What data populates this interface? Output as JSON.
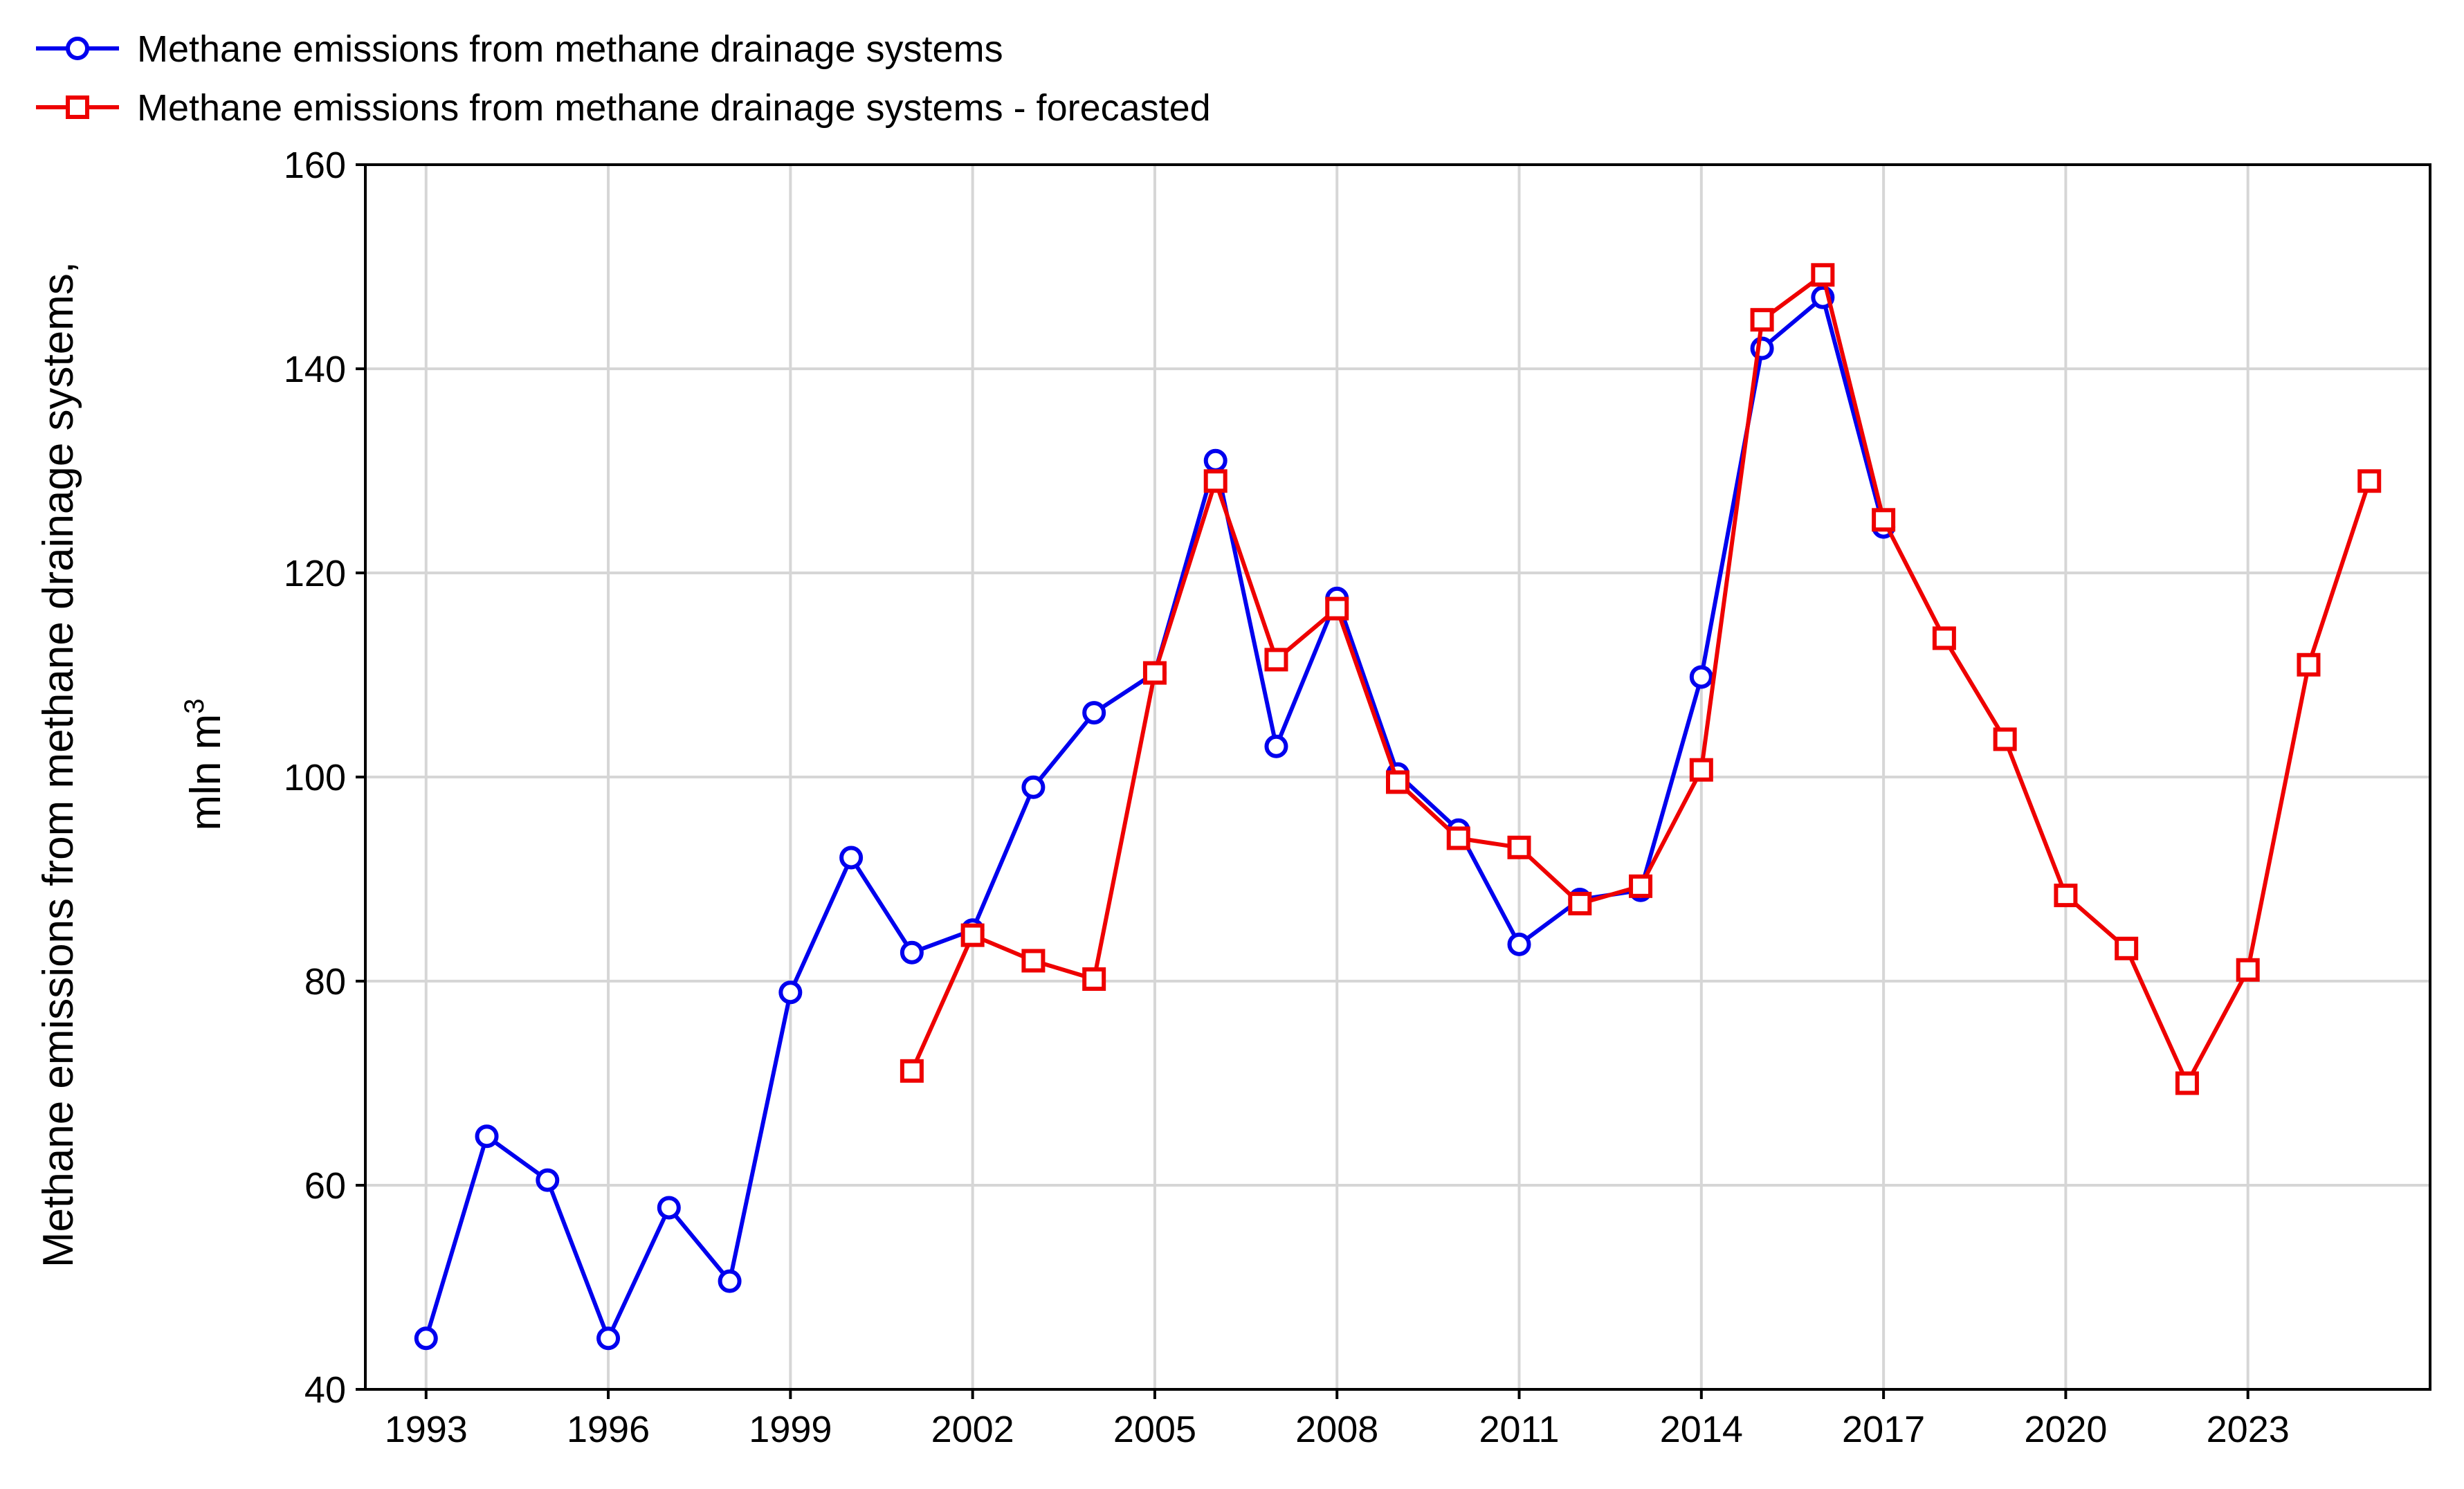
{
  "chart_data": {
    "type": "line",
    "title": "",
    "xlabel": "",
    "ylabel": "Methane emissions from methane drainage systems,",
    "ylabel_line3": "mln m",
    "ylabel_superscript": "3",
    "xlim": [
      1992,
      2026
    ],
    "ylim": [
      40,
      160
    ],
    "x_ticks": [
      1993,
      1996,
      1999,
      2002,
      2005,
      2008,
      2011,
      2014,
      2017,
      2020,
      2023
    ],
    "x_tick_labels": [
      "1993",
      "1996",
      "1999",
      "2002",
      "2005",
      "2008",
      "2011",
      "2014",
      "2017",
      "2020",
      "2023"
    ],
    "y_ticks": [
      40,
      60,
      80,
      100,
      120,
      140,
      160
    ],
    "y_tick_labels": [
      "40",
      "60",
      "80",
      "100",
      "120",
      "140",
      "160"
    ],
    "grid": true,
    "legend_position": "top-left",
    "series": [
      {
        "name": "Methane emissions from methane drainage systems",
        "color": "#0000ee",
        "marker": "circle",
        "x": [
          1993,
          1994,
          1995,
          1996,
          1997,
          1998,
          1999,
          2000,
          2001,
          2002,
          2003,
          2004,
          2005,
          2006,
          2007,
          2008,
          2009,
          2010,
          2011,
          2012,
          2013,
          2014,
          2015,
          2016,
          2017
        ],
        "values": [
          45.0,
          64.8,
          60.5,
          45.0,
          57.8,
          50.6,
          78.9,
          92.1,
          82.8,
          85.0,
          99.0,
          106.3,
          110.2,
          131.0,
          103.0,
          117.5,
          100.3,
          94.8,
          83.6,
          88.0,
          88.9,
          109.8,
          142.0,
          147.0,
          124.5
        ]
      },
      {
        "name": "Methane emissions from methane drainage systems - forecasted",
        "color": "#ee0000",
        "marker": "square",
        "x": [
          2001,
          2002,
          2003,
          2004,
          2005,
          2006,
          2007,
          2008,
          2009,
          2010,
          2011,
          2012,
          2013,
          2014,
          2015,
          2016,
          2017,
          2018,
          2019,
          2020,
          2021,
          2022,
          2023,
          2024,
          2025
        ],
        "values": [
          71.2,
          84.5,
          82.0,
          80.2,
          110.2,
          129.0,
          111.5,
          116.5,
          99.5,
          94.0,
          93.1,
          87.6,
          89.3,
          100.7,
          144.8,
          149.2,
          125.2,
          113.6,
          103.7,
          88.4,
          83.2,
          70.0,
          81.1,
          111.0,
          129.0
        ]
      }
    ]
  }
}
